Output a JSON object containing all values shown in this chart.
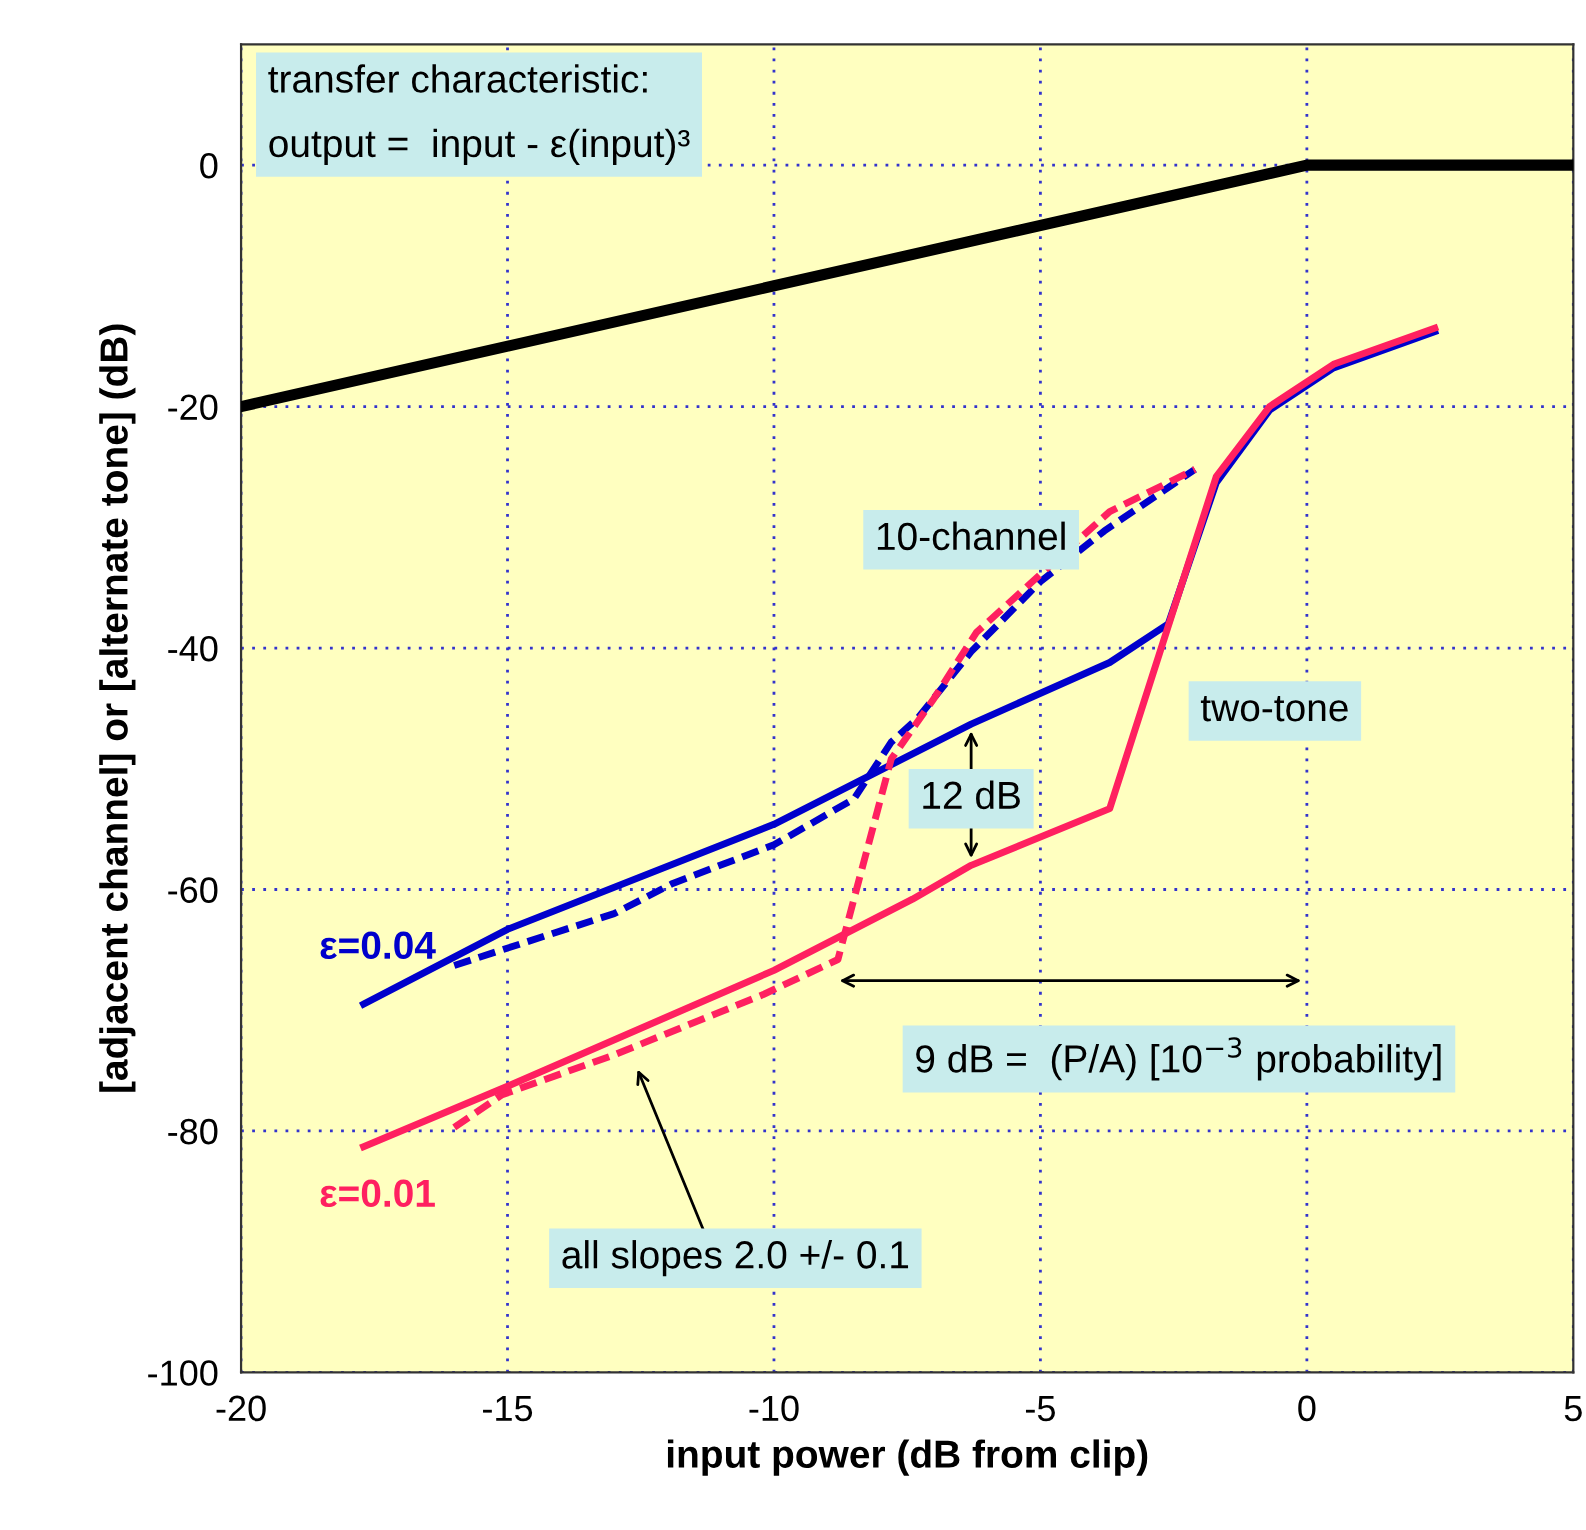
{
  "chart_data": {
    "type": "line",
    "xlabel": "input power (dB from clip)",
    "ylabel": "[adjacent channel] or [alternate tone] (dB)",
    "xlim": [
      -20,
      5
    ],
    "xticks": [
      -20,
      -15,
      -10,
      -5,
      0,
      5
    ],
    "ylim": [
      -100,
      10
    ],
    "yticks": [
      -100,
      -80,
      -60,
      -40,
      -20,
      0
    ],
    "grid": true,
    "marker": "none",
    "series": [
      {
        "color": "#000000",
        "line_style": "solid",
        "x": [
          -20,
          0,
          5
        ],
        "values": [
          -20,
          0,
          0
        ]
      },
      {
        "name": "ε=0.04",
        "color": "#0000cc",
        "line_style": "solid",
        "x": [
          -17.7,
          -15,
          -10,
          -6.3,
          -3.7,
          -2.6,
          -1.7,
          -0.7,
          0.5,
          2.4
        ],
        "values": [
          -69.5,
          -63.3,
          -54.6,
          -46.3,
          -41.2,
          -38,
          -26.3,
          -20.3,
          -16.8,
          -13.8
        ]
      },
      {
        "name": "ε=0.01",
        "color": "#ff2060",
        "line_style": "solid",
        "x": [
          -17.7,
          -15,
          -10,
          -7.4,
          -6.3,
          -3.7,
          -1.7,
          -0.7,
          0.5,
          2.4
        ],
        "values": [
          -81.3,
          -76.3,
          -66.7,
          -60.8,
          -58,
          -53.3,
          -25.8,
          -20,
          -16.5,
          -13.5
        ]
      },
      {
        "color": "#0000cc",
        "line_style": "dashed",
        "x": [
          -16,
          -15.1,
          -13,
          -11.9,
          -10,
          -8.5,
          -7.8,
          -7.3,
          -6.3,
          -5,
          -3.8,
          -2.1
        ],
        "values": [
          -66.3,
          -65,
          -62,
          -59.5,
          -56.3,
          -52.5,
          -47.8,
          -45.8,
          -40.3,
          -34.5,
          -30.3,
          -25.2
        ]
      },
      {
        "color": "#ff2060",
        "line_style": "dashed",
        "x": [
          -16,
          -15.1,
          -13,
          -10.2,
          -8.8,
          -8.5,
          -7.8,
          -7,
          -6.2,
          -5.2,
          -3.7,
          -2.1
        ],
        "values": [
          -79.7,
          -77,
          -73.7,
          -68.7,
          -65.8,
          -60.8,
          -49.2,
          -44.2,
          -38.7,
          -34.7,
          -28.7,
          -25.2
        ]
      }
    ],
    "annotations": [
      "transfer characteristic:\noutput =  input - ε(input)³",
      "10-channel",
      "two-tone",
      "12 dB",
      "9 dB =  (P/A) [10$^{−3}$ probability]",
      "all slopes 2.0 +/- 0.1"
    ]
  }
}
